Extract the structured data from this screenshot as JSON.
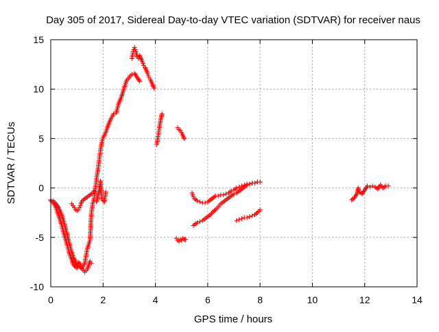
{
  "chart_data": {
    "type": "scatter",
    "title": "Day 305 of 2017, Sidereal Day-to-day VTEC variation (SDTVAR) for receiver naus",
    "xlabel": "GPS time / hours",
    "ylabel": "SDTVAR / TECUs",
    "xlim": [
      0,
      14
    ],
    "ylim": [
      -10,
      15
    ],
    "x_ticks": [
      0,
      2,
      4,
      6,
      8,
      10,
      12,
      14
    ],
    "x_tick_labels": [
      "0",
      "2",
      "4",
      "6",
      "8",
      "10",
      "12",
      "14"
    ],
    "y_ticks": [
      -10,
      -5,
      0,
      5,
      10,
      15
    ],
    "y_tick_labels": [
      "-10",
      "-5",
      "0",
      "5",
      "10",
      "15"
    ],
    "grid": true,
    "marker": "+",
    "color": "#ff0000",
    "series": [
      {
        "x": [
          0.0,
          0.1,
          0.2,
          0.3,
          0.4,
          0.5,
          0.6,
          0.7,
          0.8,
          0.9,
          1.0,
          1.05,
          1.1,
          1.2,
          1.3,
          1.4,
          1.5,
          1.55,
          1.6,
          1.65,
          1.7,
          1.75,
          1.8,
          1.85,
          1.9,
          1.95,
          2.0,
          2.1,
          2.2,
          2.3,
          2.4,
          2.5,
          2.6,
          2.7,
          2.8,
          2.9,
          3.0,
          3.1,
          3.2,
          3.3,
          3.4
        ],
        "y": [
          -1.3,
          -1.5,
          -2.0,
          -2.8,
          -3.6,
          -4.6,
          -5.5,
          -6.5,
          -7.3,
          -7.9,
          -8.1,
          -7.5,
          -7.6,
          -8.1,
          -7.6,
          -6.1,
          -5.3,
          -2.6,
          -1.6,
          -1.1,
          -0.2,
          1.0,
          1.8,
          2.8,
          3.8,
          4.6,
          5.1,
          5.6,
          6.4,
          7.0,
          7.5,
          7.6,
          8.6,
          9.2,
          10.1,
          10.9,
          11.2,
          11.5,
          11.6,
          11.2,
          10.8
        ]
      },
      {
        "x": [
          0.0,
          0.1,
          0.2,
          0.3,
          0.4,
          0.5,
          0.6,
          0.7,
          0.8,
          0.9,
          1.0,
          1.1,
          1.2,
          1.3,
          1.4,
          1.5,
          1.55
        ],
        "y": [
          -1.2,
          -1.3,
          -1.6,
          -2.0,
          -2.6,
          -3.4,
          -4.4,
          -5.5,
          -6.5,
          -7.2,
          -7.8,
          -8.0,
          -8.2,
          -8.5,
          -8.2,
          -7.4,
          -7.6
        ]
      },
      {
        "x": [
          0.8,
          0.85,
          0.9,
          0.95,
          1.0,
          1.05,
          1.1,
          1.15,
          1.2,
          1.3,
          1.4,
          1.5,
          1.6,
          1.65
        ],
        "y": [
          -1.6,
          -1.8,
          -2.0,
          -2.2,
          -2.3,
          -2.2,
          -2.0,
          -1.6,
          -1.3,
          -1.1,
          -0.9,
          -0.7,
          -0.5,
          -0.3
        ]
      },
      {
        "x": [
          1.75,
          1.8,
          1.85,
          1.9,
          1.95,
          2.0,
          2.05,
          2.1
        ],
        "y": [
          -1.4,
          -0.8,
          -0.2,
          0.7,
          -1.1,
          -1.3,
          -1.4,
          -0.4
        ]
      },
      {
        "x": [
          3.1,
          3.15,
          3.2,
          3.25,
          3.3,
          3.35,
          3.4,
          3.45,
          3.5,
          3.55,
          3.6,
          3.65,
          3.7,
          3.75,
          3.8,
          3.85,
          3.9,
          3.95
        ],
        "y": [
          13.1,
          13.8,
          14.2,
          13.8,
          13.3,
          13.1,
          13.4,
          13.1,
          12.8,
          12.4,
          12.2,
          11.9,
          11.6,
          11.2,
          11.0,
          10.7,
          10.4,
          10.1
        ]
      },
      {
        "x": [
          4.05,
          4.1,
          4.15,
          4.2,
          4.25
        ],
        "y": [
          4.4,
          5.2,
          6.1,
          6.9,
          7.5
        ]
      },
      {
        "x": [
          4.85,
          4.9,
          4.95,
          5.0,
          5.05,
          5.1
        ],
        "y": [
          6.1,
          5.9,
          5.8,
          5.6,
          5.3,
          5.0
        ]
      },
      {
        "x": [
          4.8,
          4.85,
          4.9,
          4.95,
          5.0,
          5.05,
          5.1,
          5.15
        ],
        "y": [
          -5.1,
          -5.3,
          -5.4,
          -5.2,
          -5.3,
          -5.1,
          -5.2,
          -5.2
        ]
      },
      {
        "x": [
          5.45,
          5.5,
          5.55,
          5.6,
          5.7,
          5.8,
          5.9,
          6.0,
          6.1,
          6.2,
          6.3,
          6.4,
          6.5,
          6.6,
          6.7,
          6.8,
          6.9,
          7.0,
          7.1,
          7.2,
          7.3,
          7.4,
          7.5,
          7.6,
          7.7,
          7.8,
          7.9,
          8.0
        ],
        "y": [
          -3.8,
          -3.7,
          -3.6,
          -3.5,
          -3.4,
          -3.3,
          -3.1,
          -2.9,
          -2.7,
          -2.4,
          -2.2,
          -1.9,
          -1.6,
          -1.4,
          -1.2,
          -1.0,
          -0.8,
          -0.6,
          -0.5,
          -0.3,
          -0.1,
          0.1,
          0.3,
          0.4,
          0.5,
          0.5,
          0.6,
          0.6
        ]
      },
      {
        "x": [
          5.4,
          5.45,
          5.5,
          5.6,
          5.7,
          5.8,
          5.9,
          6.0,
          6.1,
          6.2,
          6.3,
          6.4,
          6.5,
          6.6,
          6.7,
          6.8,
          6.9,
          7.0,
          7.1,
          7.2,
          7.3,
          7.4,
          7.5,
          7.6,
          7.7,
          7.8,
          7.9,
          8.0
        ],
        "y": [
          -0.5,
          -0.9,
          -1.1,
          -1.3,
          -1.4,
          -1.5,
          -1.5,
          -1.4,
          -1.2,
          -1.0,
          -0.8,
          -0.8,
          -0.7,
          -0.7,
          -0.6,
          -0.5,
          -0.3,
          -0.2,
          0.0,
          0.1,
          0.2,
          0.3,
          0.4,
          0.4,
          0.5,
          0.5,
          0.6,
          0.6
        ]
      },
      {
        "x": [
          7.1,
          7.2,
          7.3,
          7.4,
          7.5,
          7.6,
          7.7,
          7.8,
          7.9,
          8.0
        ],
        "y": [
          -3.3,
          -3.2,
          -3.1,
          -3.0,
          -3.0,
          -2.9,
          -2.8,
          -2.7,
          -2.5,
          -2.2
        ]
      },
      {
        "x": [
          11.5,
          11.6,
          11.7,
          11.75,
          11.8,
          11.9,
          12.0,
          12.1,
          12.2,
          12.3,
          12.4,
          12.5,
          12.6,
          12.7,
          12.8,
          12.9
        ],
        "y": [
          -1.2,
          -1.0,
          -0.6,
          0.0,
          -0.4,
          -0.6,
          -0.2,
          0.2,
          0.1,
          0.2,
          0.1,
          -0.1,
          0.3,
          0.0,
          0.2,
          0.2
        ]
      }
    ]
  }
}
